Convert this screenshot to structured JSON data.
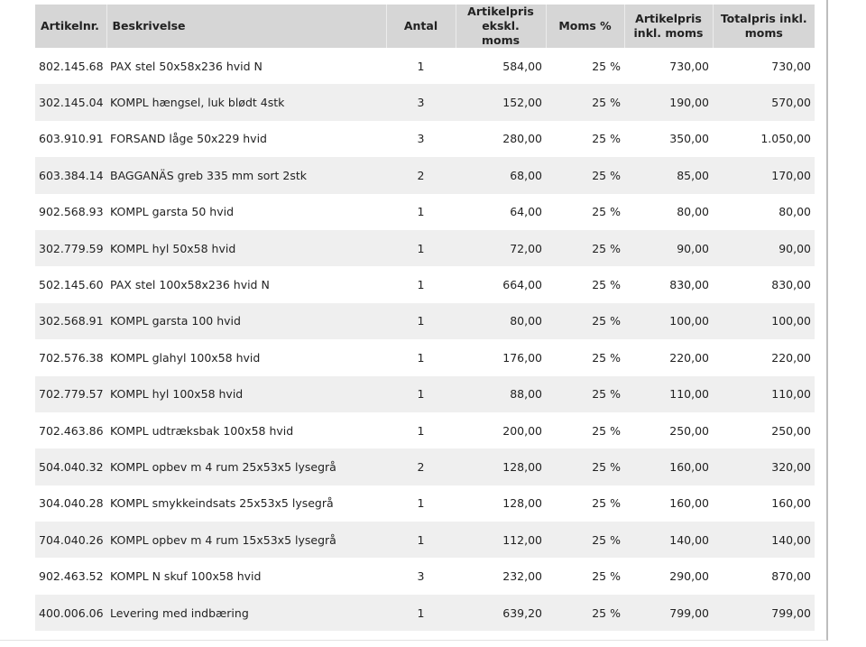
{
  "table": {
    "header": [
      "Artikelnr.",
      "Beskrivelse",
      "Antal",
      "Artikelpris ekskl. moms",
      "Moms %",
      "Artikelpris inkl. moms",
      "Totalpris inkl. moms"
    ],
    "rows": [
      [
        "802.145.68",
        "PAX stel 50x58x236 hvid N",
        "1",
        "584,00",
        "25 %",
        "730,00",
        "730,00"
      ],
      [
        "302.145.04",
        "KOMPL hængsel, luk blødt 4stk",
        "3",
        "152,00",
        "25 %",
        "190,00",
        "570,00"
      ],
      [
        "603.910.91",
        "FORSAND låge 50x229 hvid",
        "3",
        "280,00",
        "25 %",
        "350,00",
        "1.050,00"
      ],
      [
        "603.384.14",
        "BAGGANÄS greb 335 mm sort 2stk",
        "2",
        "68,00",
        "25 %",
        "85,00",
        "170,00"
      ],
      [
        "902.568.93",
        "KOMPL garsta 50 hvid",
        "1",
        "64,00",
        "25 %",
        "80,00",
        "80,00"
      ],
      [
        "302.779.59",
        "KOMPL hyl 50x58 hvid",
        "1",
        "72,00",
        "25 %",
        "90,00",
        "90,00"
      ],
      [
        "502.145.60",
        "PAX stel 100x58x236 hvid N",
        "1",
        "664,00",
        "25 %",
        "830,00",
        "830,00"
      ],
      [
        "302.568.91",
        "KOMPL garsta 100 hvid",
        "1",
        "80,00",
        "25 %",
        "100,00",
        "100,00"
      ],
      [
        "702.576.38",
        "KOMPL glahyl 100x58 hvid",
        "1",
        "176,00",
        "25 %",
        "220,00",
        "220,00"
      ],
      [
        "702.779.57",
        "KOMPL hyl 100x58 hvid",
        "1",
        "88,00",
        "25 %",
        "110,00",
        "110,00"
      ],
      [
        "702.463.86",
        "KOMPL udtræksbak 100x58 hvid",
        "1",
        "200,00",
        "25 %",
        "250,00",
        "250,00"
      ],
      [
        "504.040.32",
        "KOMPL opbev m 4 rum 25x53x5 lysegrå",
        "2",
        "128,00",
        "25 %",
        "160,00",
        "320,00"
      ],
      [
        "304.040.28",
        "KOMPL smykkeindsats 25x53x5 lysegrå",
        "1",
        "128,00",
        "25 %",
        "160,00",
        "160,00"
      ],
      [
        "704.040.26",
        "KOMPL opbev m 4 rum 15x53x5 lysegrå",
        "1",
        "112,00",
        "25 %",
        "140,00",
        "140,00"
      ],
      [
        "902.463.52",
        "KOMPL N skuf 100x58 hvid",
        "3",
        "232,00",
        "25 %",
        "290,00",
        "870,00"
      ],
      [
        "400.006.06",
        "Levering med indbæring",
        "1",
        "639,20",
        "25 %",
        "799,00",
        "799,00"
      ]
    ]
  }
}
